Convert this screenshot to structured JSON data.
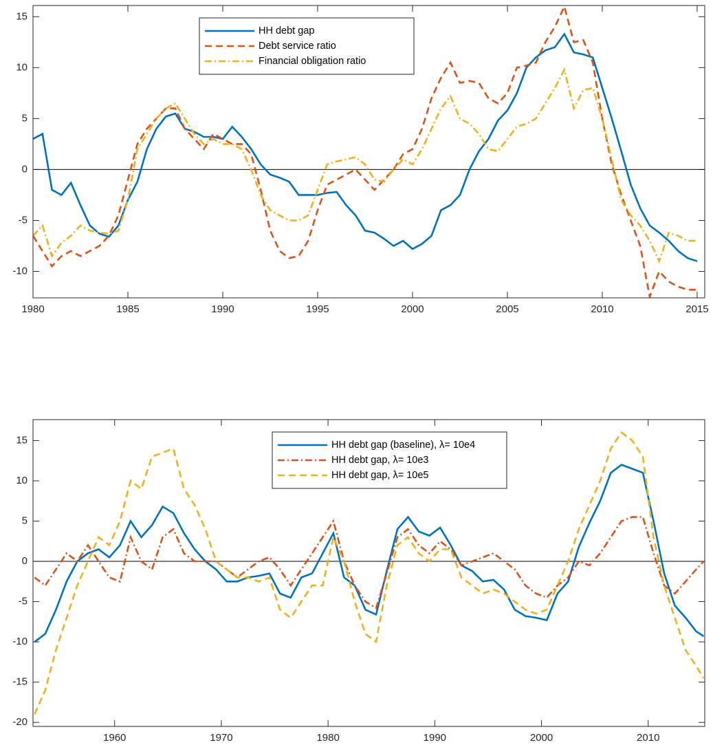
{
  "chart_data": [
    {
      "type": "line",
      "x": [
        1980,
        1980.5,
        1981,
        1981.5,
        1982,
        1982.5,
        1983,
        1983.5,
        1984,
        1984.5,
        1985,
        1985.5,
        1986,
        1986.5,
        1987,
        1987.5,
        1988,
        1988.5,
        1989,
        1989.5,
        1990,
        1990.5,
        1991,
        1991.5,
        1992,
        1992.5,
        1993,
        1993.5,
        1994,
        1994.5,
        1995,
        1995.5,
        1996,
        1996.5,
        1997,
        1997.5,
        1998,
        1998.5,
        1999,
        1999.5,
        2000,
        2000.5,
        2001,
        2001.5,
        2002,
        2002.5,
        2003,
        2003.5,
        2004,
        2004.5,
        2005,
        2005.5,
        2006,
        2006.5,
        2007,
        2007.5,
        2008,
        2008.5,
        2009,
        2009.5,
        2010,
        2010.5,
        2011,
        2011.5,
        2012,
        2012.5,
        2013,
        2013.5,
        2014,
        2014.5,
        2015
      ],
      "series": [
        {
          "name": "HH debt gap",
          "color": "#0072BD",
          "style": "solid",
          "values": [
            3,
            3.5,
            -2,
            -2.5,
            -1.3,
            -3.5,
            -5.5,
            -6.3,
            -6.6,
            -5.5,
            -3,
            -1.2,
            2,
            4,
            5.2,
            5.5,
            4,
            3.7,
            3.2,
            3.2,
            3,
            4.2,
            3.2,
            2,
            0.5,
            -0.5,
            -0.8,
            -1.2,
            -2.5,
            -2.5,
            -2.5,
            -2.3,
            -2.2,
            -3.5,
            -4.5,
            -6,
            -6.2,
            -6.8,
            -7.5,
            -7,
            -7.8,
            -7.3,
            -6.5,
            -4,
            -3.5,
            -2.5,
            0,
            1.8,
            3,
            4.8,
            5.8,
            7.5,
            10,
            11,
            11.7,
            12,
            13.3,
            11.5,
            11.3,
            11,
            8,
            5,
            1.8,
            -1.5,
            -3.8,
            -5.5,
            -6.2,
            -7,
            -8,
            -8.7,
            -9
          ]
        },
        {
          "name": "Debt service ratio",
          "color": "#D95319",
          "style": "dashed",
          "values": [
            -6.5,
            -8,
            -9.5,
            -8.5,
            -8,
            -8.5,
            -8,
            -7.5,
            -6.5,
            -4.5,
            -1,
            2.5,
            4,
            5,
            6,
            6,
            4,
            3,
            2,
            3.5,
            3,
            2.5,
            2.5,
            1.5,
            -2,
            -6,
            -8,
            -8.7,
            -8.5,
            -7,
            -4,
            -1.5,
            -1,
            -0.5,
            0,
            -1,
            -2,
            -1,
            0,
            1.5,
            2,
            4,
            7,
            9,
            10.5,
            8.5,
            8.7,
            8.5,
            7,
            6.5,
            7.5,
            10,
            10.2,
            10.5,
            12.5,
            14,
            16,
            12.5,
            12.7,
            10.5,
            5,
            0.5,
            -2.5,
            -5,
            -7.5,
            -12.5,
            -10,
            -11,
            -11.5,
            -11.8,
            -11.8
          ]
        },
        {
          "name": "Financial obligation ratio",
          "color": "#EDB120",
          "style": "dashdot",
          "values": [
            -6.5,
            -5.5,
            -8.5,
            -7.2,
            -6.5,
            -5.5,
            -6,
            -6.2,
            -6.3,
            -6,
            -3,
            2,
            3.5,
            5,
            6,
            6.5,
            5,
            3.5,
            2.5,
            3,
            2.5,
            2.5,
            2,
            0,
            -2.5,
            -4,
            -4.5,
            -5,
            -5,
            -4.5,
            -2,
            0.5,
            0.8,
            1,
            1.2,
            0.5,
            -1,
            -1.2,
            0,
            1,
            0.5,
            2,
            4,
            6,
            7.2,
            5,
            4.5,
            3.5,
            2,
            1.8,
            3,
            4.2,
            4.5,
            5,
            6.5,
            8,
            9.8,
            6,
            7.8,
            8,
            5,
            1,
            -3,
            -4.5,
            -5.5,
            -7,
            -9,
            -6.2,
            -6.5,
            -7,
            -7
          ]
        }
      ],
      "xlim": [
        1980,
        2015.4
      ],
      "xticks": [
        1980,
        1985,
        1990,
        1995,
        2000,
        2005,
        2010,
        2015
      ],
      "ylim": [
        -12.6,
        16.1
      ],
      "yticks": [
        -10,
        -5,
        0,
        5,
        10,
        15
      ],
      "zero_line": true,
      "legend": "north"
    },
    {
      "type": "line",
      "x": [
        1952.5,
        1953.5,
        1954.5,
        1955.5,
        1956.5,
        1957.5,
        1958.5,
        1959.5,
        1960.5,
        1961.5,
        1962.5,
        1963.5,
        1964.5,
        1965.5,
        1966.5,
        1967.5,
        1968.5,
        1969.5,
        1970.5,
        1971.5,
        1972.5,
        1973.5,
        1974.5,
        1975.5,
        1976.5,
        1977.5,
        1978.5,
        1979.5,
        1980.5,
        1981.5,
        1982.5,
        1983.5,
        1984.5,
        1985.5,
        1986.5,
        1987.5,
        1988.5,
        1989.5,
        1990.5,
        1991.5,
        1992.5,
        1993.5,
        1994.5,
        1995.5,
        1996.5,
        1997.5,
        1998.5,
        1999.5,
        2000.5,
        2001.5,
        2002.5,
        2003.5,
        2004.5,
        2005.5,
        2006.5,
        2007.5,
        2008.5,
        2009.5,
        2010.5,
        2011.5,
        2012.5,
        2013.5,
        2014.5,
        2015.2
      ],
      "series": [
        {
          "name": "HH debt gap (baseline), λ= 10e4",
          "color": "#0072BD",
          "style": "solid",
          "values": [
            -10,
            -9,
            -6,
            -2.5,
            0,
            1,
            1.5,
            0.5,
            2,
            5,
            3,
            4.5,
            6.8,
            6,
            3.5,
            1.5,
            0,
            -1,
            -2.5,
            -2.5,
            -2,
            -1.8,
            -1.5,
            -4,
            -4.5,
            -2,
            -1.5,
            1,
            3.5,
            -2,
            -3,
            -6,
            -6.6,
            -1.2,
            4,
            5.5,
            3.7,
            3.2,
            4.2,
            2,
            -0.5,
            -1.2,
            -2.5,
            -2.3,
            -3.5,
            -6,
            -6.8,
            -7,
            -7.3,
            -4,
            -2.5,
            1.8,
            4.8,
            7.5,
            11,
            12,
            11.5,
            11,
            5,
            -1.5,
            -5.5,
            -7,
            -8.7,
            -9.3
          ]
        },
        {
          "name": "HH debt gap, λ= 10e3",
          "color": "#D95319",
          "style": "dashdot",
          "values": [
            -2,
            -3,
            -1,
            1,
            0,
            2,
            0,
            -2,
            -2.5,
            3,
            0,
            -1,
            3,
            4,
            1,
            0,
            0,
            0,
            -1,
            -2,
            -1,
            0,
            0.5,
            -1,
            -3,
            -1,
            1,
            3,
            5,
            0,
            -3,
            -5,
            -5.8,
            -1.5,
            3,
            4,
            2,
            1,
            2.5,
            1.5,
            -0.5,
            0,
            0.5,
            1,
            0,
            -1,
            -3,
            -4,
            -4.5,
            -3,
            -2,
            0,
            -0.5,
            1,
            3,
            5,
            5.5,
            5.5,
            1,
            -3,
            -4,
            -2.5,
            -1,
            0
          ]
        },
        {
          "name": "HH debt gap, λ= 10e5",
          "color": "#EDB120",
          "style": "dashed",
          "values": [
            -19,
            -16,
            -11,
            -7,
            -3,
            0,
            3,
            2,
            5,
            10,
            9,
            13,
            13.5,
            14,
            9,
            7,
            4,
            0,
            -1,
            -2,
            -2,
            -2.5,
            -2,
            -6,
            -7,
            -5,
            -3,
            -3,
            3,
            0,
            -5,
            -9,
            -10,
            -3,
            2,
            3,
            1,
            0,
            1.5,
            1.5,
            -2,
            -3,
            -4,
            -3.5,
            -4,
            -5,
            -6,
            -6.5,
            -6,
            -3,
            0,
            4,
            7,
            10,
            14,
            16,
            15,
            13,
            3,
            -3,
            -7,
            -11,
            -13,
            -14.5
          ]
        }
      ],
      "xlim": [
        1952.35,
        2015.3
      ],
      "xticks": [
        1960,
        1970,
        1980,
        1990,
        2000,
        2010
      ],
      "ylim": [
        -20.5,
        17.6
      ],
      "yticks": [
        -20,
        -15,
        -10,
        -5,
        0,
        5,
        10,
        15
      ],
      "zero_line": true,
      "legend": "north"
    }
  ]
}
